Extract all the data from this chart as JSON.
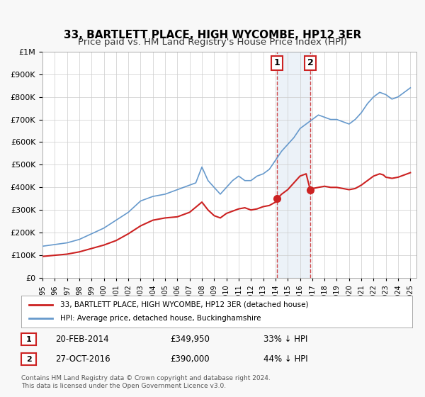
{
  "title": "33, BARTLETT PLACE, HIGH WYCOMBE, HP12 3ER",
  "subtitle": "Price paid vs. HM Land Registry's House Price Index (HPI)",
  "xlabel": "",
  "ylabel": "",
  "ylim": [
    0,
    1000000
  ],
  "yticks": [
    0,
    100000,
    200000,
    300000,
    400000,
    500000,
    600000,
    700000,
    800000,
    900000,
    1000000
  ],
  "ytick_labels": [
    "£0",
    "£100K",
    "£200K",
    "£300K",
    "£400K",
    "£500K",
    "£600K",
    "£700K",
    "£800K",
    "£900K",
    "£1M"
  ],
  "xlim_start": 1995.0,
  "xlim_end": 2025.5,
  "xtick_years": [
    1995,
    1996,
    1997,
    1998,
    1999,
    2000,
    2001,
    2002,
    2003,
    2004,
    2005,
    2006,
    2007,
    2008,
    2009,
    2010,
    2011,
    2012,
    2013,
    2014,
    2015,
    2016,
    2017,
    2018,
    2019,
    2020,
    2021,
    2022,
    2023,
    2024,
    2025
  ],
  "hpi_color": "#6699cc",
  "price_color": "#cc2222",
  "bg_color": "#f8f8f8",
  "plot_bg_color": "#ffffff",
  "grid_color": "#cccccc",
  "sale1_date": 2014.13,
  "sale1_price": 349950,
  "sale1_label": "1",
  "sale2_date": 2016.83,
  "sale2_price": 390000,
  "sale2_label": "2",
  "shade_start": 2014.13,
  "shade_end": 2016.83,
  "legend_line1": "33, BARTLETT PLACE, HIGH WYCOMBE, HP12 3ER (detached house)",
  "legend_line2": "HPI: Average price, detached house, Buckinghamshire",
  "table_row1_num": "1",
  "table_row1_date": "20-FEB-2014",
  "table_row1_price": "£349,950",
  "table_row1_hpi": "33% ↓ HPI",
  "table_row2_num": "2",
  "table_row2_date": "27-OCT-2016",
  "table_row2_price": "£390,000",
  "table_row2_hpi": "44% ↓ HPI",
  "footnote": "Contains HM Land Registry data © Crown copyright and database right 2024.\nThis data is licensed under the Open Government Licence v3.0.",
  "title_fontsize": 11,
  "subtitle_fontsize": 9.5
}
